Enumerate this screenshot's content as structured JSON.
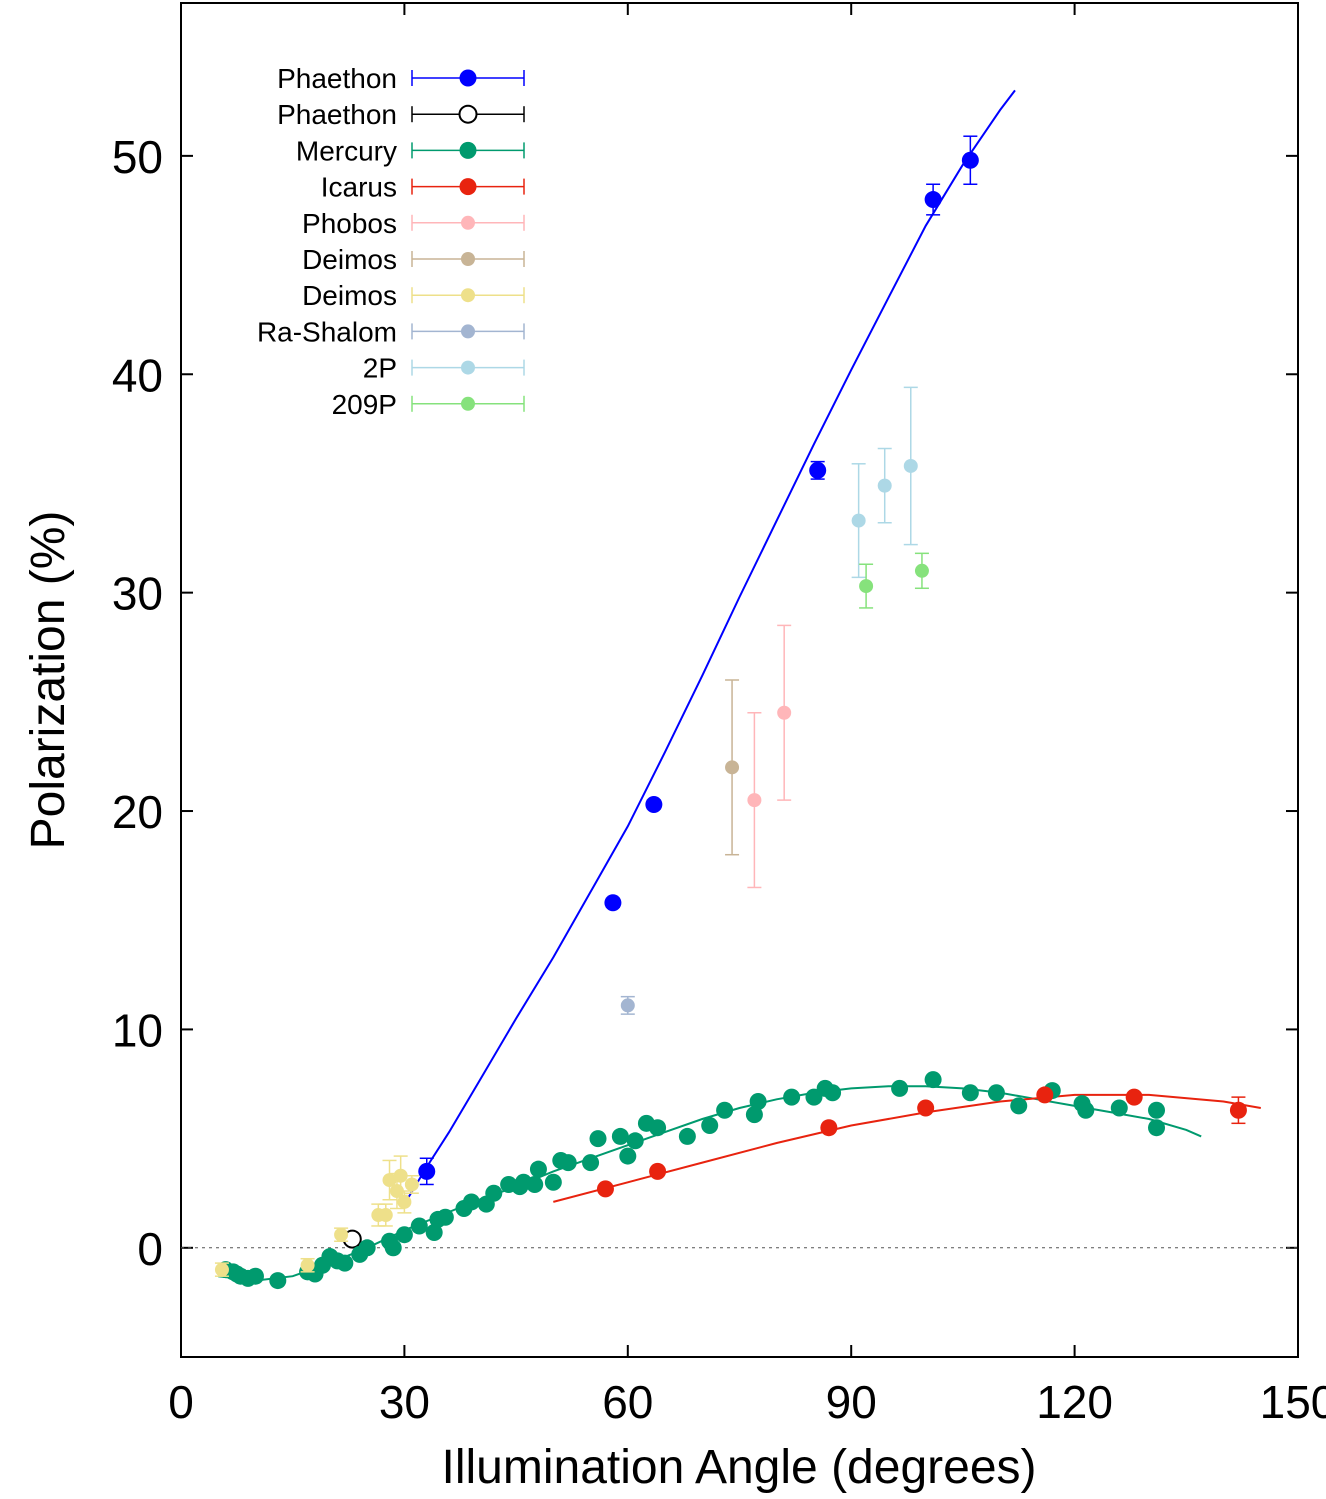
{
  "chart_data": {
    "type": "scatter",
    "title": "",
    "xlabel": "Illumination Angle (degrees)",
    "ylabel": "Polarization (%)",
    "xlim": [
      0,
      150
    ],
    "ylim": [
      -5,
      57
    ],
    "xticks": [
      0,
      30,
      60,
      90,
      120,
      150
    ],
    "yticks": [
      0,
      10,
      20,
      30,
      40,
      50
    ],
    "grid": false,
    "zero_line": true,
    "legend_position": "top-left",
    "series": [
      {
        "name": "Phaethon",
        "color": "#0000ff",
        "filled": true,
        "points": [
          {
            "x": 33,
            "y": 3.5,
            "err": 0.6
          },
          {
            "x": 58,
            "y": 15.8,
            "err": 0.2
          },
          {
            "x": 63.5,
            "y": 20.3,
            "err": 0.2
          },
          {
            "x": 85.5,
            "y": 35.6,
            "err": 0.4
          },
          {
            "x": 101,
            "y": 48.0,
            "err": 0.7
          },
          {
            "x": 106,
            "y": 49.8,
            "err": 1.1
          }
        ]
      },
      {
        "name": "Phaethon",
        "color": "#000000",
        "filled": false,
        "points": [
          {
            "x": 23,
            "y": 0.4,
            "err": 0.1
          }
        ]
      },
      {
        "name": "Mercury",
        "color": "#009a6e",
        "filled": true,
        "points": [
          {
            "x": 6,
            "y": -1.0
          },
          {
            "x": 7,
            "y": -1.1
          },
          {
            "x": 7.5,
            "y": -1.2
          },
          {
            "x": 8,
            "y": -1.3
          },
          {
            "x": 9,
            "y": -1.4
          },
          {
            "x": 10,
            "y": -1.3
          },
          {
            "x": 13,
            "y": -1.5
          },
          {
            "x": 17,
            "y": -1.1
          },
          {
            "x": 18,
            "y": -1.2
          },
          {
            "x": 19,
            "y": -0.8
          },
          {
            "x": 20,
            "y": -0.4
          },
          {
            "x": 21,
            "y": -0.6
          },
          {
            "x": 22,
            "y": -0.7
          },
          {
            "x": 24,
            "y": -0.3
          },
          {
            "x": 25,
            "y": 0.0
          },
          {
            "x": 28,
            "y": 0.3
          },
          {
            "x": 28.5,
            "y": 0.0
          },
          {
            "x": 30,
            "y": 0.6
          },
          {
            "x": 32,
            "y": 1.0
          },
          {
            "x": 34,
            "y": 0.7
          },
          {
            "x": 34.5,
            "y": 1.3
          },
          {
            "x": 35.5,
            "y": 1.4
          },
          {
            "x": 38,
            "y": 1.8
          },
          {
            "x": 39,
            "y": 2.1
          },
          {
            "x": 41,
            "y": 2.0
          },
          {
            "x": 42,
            "y": 2.5
          },
          {
            "x": 44,
            "y": 2.9
          },
          {
            "x": 45.5,
            "y": 2.8
          },
          {
            "x": 46,
            "y": 3.0
          },
          {
            "x": 47.5,
            "y": 2.9
          },
          {
            "x": 48,
            "y": 3.6
          },
          {
            "x": 50,
            "y": 3.0
          },
          {
            "x": 51,
            "y": 4.0
          },
          {
            "x": 52,
            "y": 3.9
          },
          {
            "x": 55,
            "y": 3.9
          },
          {
            "x": 56,
            "y": 5.0
          },
          {
            "x": 59,
            "y": 5.1
          },
          {
            "x": 60,
            "y": 4.2
          },
          {
            "x": 61,
            "y": 4.9
          },
          {
            "x": 62.5,
            "y": 5.7
          },
          {
            "x": 64,
            "y": 5.5
          },
          {
            "x": 68,
            "y": 5.1
          },
          {
            "x": 71,
            "y": 5.6
          },
          {
            "x": 73,
            "y": 6.3
          },
          {
            "x": 77,
            "y": 6.1
          },
          {
            "x": 77.5,
            "y": 6.7
          },
          {
            "x": 82,
            "y": 6.9
          },
          {
            "x": 85,
            "y": 6.9
          },
          {
            "x": 86.5,
            "y": 7.3
          },
          {
            "x": 87.5,
            "y": 7.1
          },
          {
            "x": 96.5,
            "y": 7.3
          },
          {
            "x": 101,
            "y": 7.7
          },
          {
            "x": 106,
            "y": 7.1
          },
          {
            "x": 109.5,
            "y": 7.1
          },
          {
            "x": 112.5,
            "y": 6.5
          },
          {
            "x": 117,
            "y": 7.2
          },
          {
            "x": 121,
            "y": 6.6
          },
          {
            "x": 121.5,
            "y": 6.3
          },
          {
            "x": 126,
            "y": 6.4
          },
          {
            "x": 131,
            "y": 6.3
          },
          {
            "x": 131,
            "y": 5.5
          }
        ]
      },
      {
        "name": "Icarus",
        "color": "#e8230f",
        "filled": true,
        "points": [
          {
            "x": 57,
            "y": 2.7
          },
          {
            "x": 64,
            "y": 3.5
          },
          {
            "x": 87,
            "y": 5.5
          },
          {
            "x": 100,
            "y": 6.4
          },
          {
            "x": 116,
            "y": 7.0
          },
          {
            "x": 128,
            "y": 6.9
          },
          {
            "x": 142,
            "y": 6.3,
            "err": 0.6
          }
        ]
      },
      {
        "name": "Phobos",
        "color": "#ffb6b9",
        "filled": true,
        "points": [
          {
            "x": 77,
            "y": 20.5,
            "err": 4.0
          },
          {
            "x": 81,
            "y": 24.5,
            "err": 4.0
          }
        ]
      },
      {
        "name": "Deimos",
        "color": "#c8b496",
        "filled": true,
        "points": [
          {
            "x": 74,
            "y": 22.0,
            "err": 4.0
          }
        ]
      },
      {
        "name": "Deimos",
        "color": "#eee08a",
        "filled": true,
        "points": [
          {
            "x": 5.5,
            "y": -1.0,
            "err": 0.3
          },
          {
            "x": 17,
            "y": -0.8,
            "err": 0.3
          },
          {
            "x": 21.5,
            "y": 0.6,
            "err": 0.3
          },
          {
            "x": 26.5,
            "y": 1.5,
            "err": 0.5
          },
          {
            "x": 27.5,
            "y": 1.5,
            "err": 0.5
          },
          {
            "x": 28,
            "y": 3.1,
            "err": 0.9
          },
          {
            "x": 29,
            "y": 2.6,
            "err": 0.8
          },
          {
            "x": 29.5,
            "y": 3.3,
            "err": 0.9
          },
          {
            "x": 30,
            "y": 2.1,
            "err": 0.5
          },
          {
            "x": 31,
            "y": 2.9,
            "err": 0.4
          }
        ]
      },
      {
        "name": "Ra-Shalom",
        "color": "#a3b5d1",
        "filled": true,
        "points": [
          {
            "x": 60,
            "y": 11.1,
            "err": 0.4
          }
        ]
      },
      {
        "name": "2P",
        "color": "#add8e6",
        "filled": true,
        "points": [
          {
            "x": 91,
            "y": 33.3,
            "err": 2.6
          },
          {
            "x": 94.5,
            "y": 34.9,
            "err": 1.7
          },
          {
            "x": 98,
            "y": 35.8,
            "err": 3.6
          }
        ]
      },
      {
        "name": "209P",
        "color": "#86e27c",
        "filled": true,
        "points": [
          {
            "x": 92,
            "y": 30.3,
            "err": 1.0
          },
          {
            "x": 99.5,
            "y": 31.0,
            "err": 0.8
          }
        ]
      }
    ],
    "fit_curves": [
      {
        "series": "Phaethon",
        "color": "#0000ff",
        "x": [
          30,
          33,
          36,
          40,
          45,
          50,
          55,
          60,
          65,
          70,
          75,
          80,
          85,
          90,
          95,
          100,
          105,
          110,
          112
        ],
        "y": [
          2.0,
          3.7,
          5.3,
          7.6,
          10.5,
          13.3,
          16.3,
          19.3,
          22.7,
          26.2,
          29.8,
          33.3,
          36.8,
          40.2,
          43.5,
          46.8,
          49.6,
          52.1,
          53.0
        ]
      },
      {
        "series": "Mercury",
        "color": "#009a6e",
        "x": [
          5,
          10,
          15,
          20,
          25,
          30,
          35,
          40,
          45,
          50,
          55,
          60,
          65,
          70,
          75,
          80,
          85,
          90,
          95,
          100,
          105,
          110,
          115,
          120,
          125,
          130,
          135,
          137
        ],
        "y": [
          -1.3,
          -1.5,
          -1.3,
          -0.7,
          0.0,
          0.8,
          1.5,
          2.2,
          2.8,
          3.5,
          4.1,
          4.7,
          5.3,
          5.9,
          6.4,
          6.8,
          7.1,
          7.3,
          7.4,
          7.4,
          7.3,
          7.1,
          6.8,
          6.5,
          6.2,
          5.9,
          5.4,
          5.1
        ]
      },
      {
        "series": "Icarus",
        "color": "#e8230f",
        "x": [
          50,
          60,
          70,
          80,
          90,
          100,
          110,
          120,
          130,
          140,
          145
        ],
        "y": [
          2.1,
          3.0,
          3.9,
          4.8,
          5.6,
          6.2,
          6.7,
          7.0,
          7.0,
          6.7,
          6.4
        ]
      }
    ]
  }
}
